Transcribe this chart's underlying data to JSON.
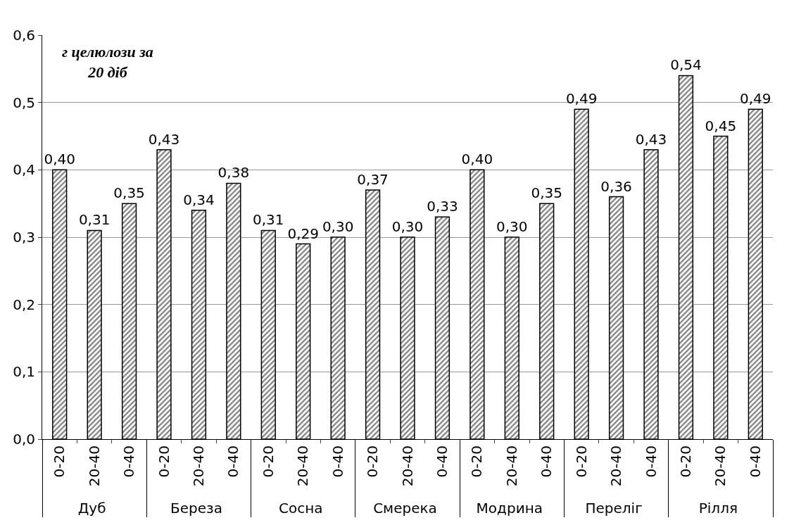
{
  "chart_data": {
    "type": "bar",
    "title": "г целюлози за 20 діб",
    "categories": [
      "0-20",
      "20-40",
      "0-40",
      "0-20",
      "20-40",
      "0-40",
      "0-20",
      "20-40",
      "0-40",
      "0-20",
      "20-40",
      "0-40",
      "0-20",
      "20-40",
      "0-40",
      "0-20",
      "20-40",
      "0-40",
      "0-20",
      "20-40",
      "0-40"
    ],
    "annotations": [
      "Дуб",
      "Береза",
      "Сосна",
      "Смерека",
      "Модрина",
      "Переліг",
      "Рілля"
    ],
    "values": [
      0.4,
      0.31,
      0.35,
      0.43,
      0.34,
      0.38,
      0.31,
      0.29,
      0.3,
      0.37,
      0.3,
      0.33,
      0.4,
      0.3,
      0.35,
      0.49,
      0.36,
      0.43,
      0.54,
      0.45,
      0.49
    ],
    "value_labels": [
      "0,40",
      "0,31",
      "0,35",
      "0,43",
      "0,34",
      "0,38",
      "0,31",
      "0,29",
      "0,30",
      "0,37",
      "0,30",
      "0,33",
      "0,40",
      "0,30",
      "0,35",
      "0,49",
      "0,36",
      "0,43",
      "0,54",
      "0,45",
      "0,49"
    ],
    "color": "#000000",
    "ylim": [
      0,
      0.6
    ],
    "yticks": [
      {
        "value": 0,
        "label": "0,0"
      },
      {
        "value": 0.1,
        "label": "0,1"
      },
      {
        "value": 0.2,
        "label": "0,2"
      },
      {
        "value": 0.3,
        "label": "0,3"
      },
      {
        "value": 0.4,
        "label": "0,4"
      },
      {
        "value": 0.5,
        "label": "0,5"
      },
      {
        "value": 0.6,
        "label": "0,6"
      }
    ],
    "grid": "y"
  }
}
